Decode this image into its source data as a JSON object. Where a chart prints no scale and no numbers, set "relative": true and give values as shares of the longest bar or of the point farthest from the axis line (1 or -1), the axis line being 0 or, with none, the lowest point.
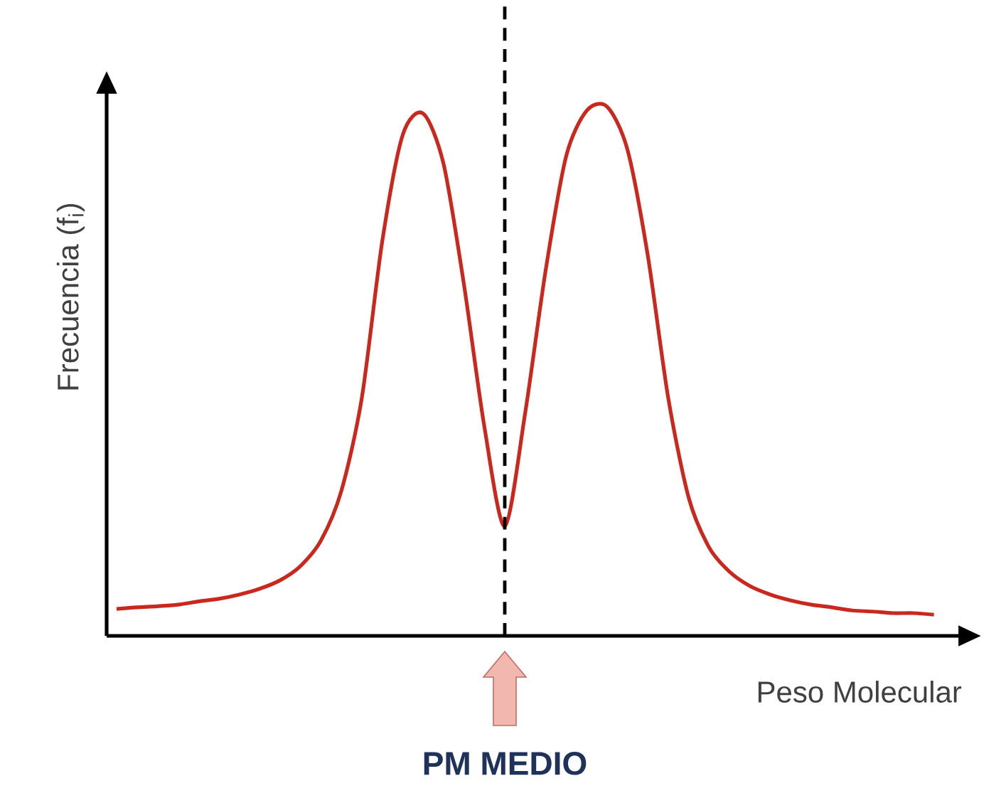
{
  "chart_data": {
    "type": "line",
    "relative": true,
    "xlabel": "Peso Molecular",
    "ylabel": "Frecuencia (f$_{i}$)",
    "categories": [
      null,
      null,
      null,
      null,
      null,
      null,
      null,
      null,
      null,
      null,
      null,
      null,
      null,
      null,
      null,
      null,
      null,
      null,
      null,
      null,
      null,
      null,
      null,
      null,
      null,
      null,
      null,
      null,
      null,
      null,
      null,
      null,
      null,
      null,
      null,
      null,
      null,
      null,
      null,
      null,
      null
    ],
    "series": [
      {
        "color": "#c8281e",
        "values": [
          0.051,
          0.054,
          0.056,
          0.059,
          0.065,
          0.07,
          0.078,
          0.089,
          0.105,
          0.132,
          0.18,
          0.274,
          0.449,
          0.745,
          0.946,
          0.987,
          0.892,
          0.664,
          0.395,
          0.207,
          0.422,
          0.691,
          0.906,
          0.992,
          1,
          0.919,
          0.718,
          0.449,
          0.261,
          0.167,
          0.121,
          0.094,
          0.078,
          0.067,
          0.059,
          0.054,
          0.048,
          0.046,
          0.043,
          0.043,
          0.04
        ]
      }
    ],
    "annotations": [
      "PM MEDIO"
    ]
  }
}
